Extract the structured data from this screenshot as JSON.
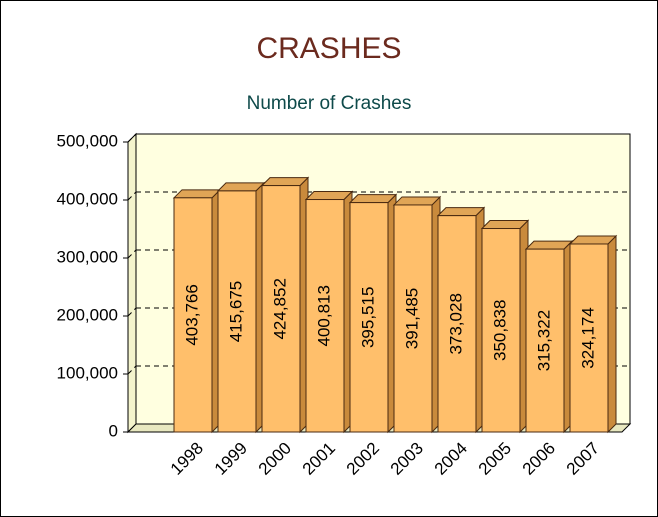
{
  "chart_data": {
    "type": "bar",
    "title": "CRASHES",
    "subtitle": "Number of Crashes",
    "categories": [
      "1998",
      "1999",
      "2000",
      "2001",
      "2002",
      "2003",
      "2004",
      "2005",
      "2006",
      "2007"
    ],
    "values": [
      403766,
      415675,
      424852,
      400813,
      395515,
      391485,
      373028,
      350838,
      315322,
      324174
    ],
    "value_labels": [
      "403,766",
      "415,675",
      "424,852",
      "400,813",
      "395,515",
      "391,485",
      "373,028",
      "350,838",
      "315,322",
      "324,174"
    ],
    "color": "#ffbf6b",
    "ylim": [
      0,
      500000
    ],
    "yticks": [
      0,
      {
        "value": 100000,
        "label": "100,000"
      },
      {
        "value": 200000,
        "label": "200,000"
      },
      {
        "value": 300000,
        "label": "300,000"
      },
      {
        "value": 400000,
        "label": "400,000"
      },
      {
        "value": 500000,
        "label": "500,000"
      }
    ],
    "grid": true
  }
}
